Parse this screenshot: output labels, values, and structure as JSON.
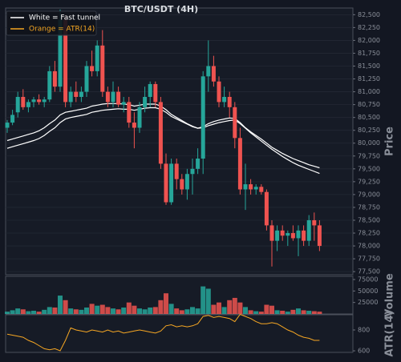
{
  "chart_data": [
    {
      "type": "candlestick",
      "title": "BTC/USDT (4H)",
      "ylabel": "Price",
      "grid": true,
      "up_color": "#26a69a",
      "down_color": "#ef5350",
      "open": [
        80300,
        80400,
        80600,
        80900,
        80700,
        80800,
        80850,
        80800,
        80850,
        81400,
        81100,
        82400,
        80800,
        81000,
        80900,
        81000,
        81500,
        81400,
        81900,
        81000,
        80800,
        81000,
        80750,
        80800,
        80400,
        80300,
        80700,
        80900,
        81150,
        80800,
        79600,
        78850,
        79600,
        79300,
        79100,
        79400,
        79500,
        79700,
        81300,
        81500,
        81200,
        80800,
        80900,
        80700,
        80100,
        79100,
        79200,
        79100,
        79150,
        79050,
        78400,
        78100,
        78300,
        78200,
        78250,
        78150,
        78300,
        78100,
        78500,
        78400
      ],
      "high": [
        80450,
        80650,
        81000,
        81050,
        80850,
        80900,
        80950,
        80900,
        81500,
        81600,
        82600,
        82500,
        81100,
        81200,
        81100,
        81600,
        81800,
        82000,
        82200,
        81100,
        81200,
        81100,
        80900,
        80900,
        80600,
        80800,
        81100,
        81200,
        81200,
        80900,
        79800,
        79700,
        79700,
        79400,
        79500,
        79700,
        79900,
        81400,
        82000,
        81700,
        81300,
        81100,
        81000,
        80800,
        80300,
        79600,
        79300,
        79200,
        79200,
        79100,
        78500,
        78400,
        78400,
        78300,
        78400,
        78400,
        78400,
        78600,
        78650,
        78500
      ],
      "low": [
        80200,
        80350,
        80500,
        80650,
        80600,
        80700,
        80750,
        80700,
        80800,
        81000,
        81000,
        80700,
        80700,
        80800,
        80800,
        80900,
        81300,
        81300,
        80900,
        80700,
        80700,
        80700,
        80600,
        80300,
        79900,
        80200,
        80600,
        80700,
        80700,
        79500,
        78800,
        78800,
        79100,
        79000,
        78900,
        79000,
        79400,
        79400,
        81000,
        81100,
        80700,
        80700,
        80500,
        79900,
        79000,
        78700,
        79000,
        79000,
        79000,
        78300,
        77600,
        77900,
        78100,
        78000,
        78100,
        77800,
        78000,
        78000,
        78100,
        77900
      ],
      "close": [
        80400,
        80550,
        80900,
        80700,
        80800,
        80850,
        80800,
        80850,
        81400,
        81100,
        82400,
        80800,
        81000,
        80900,
        81000,
        81500,
        81400,
        81900,
        81000,
        80800,
        81000,
        80750,
        80800,
        80400,
        80300,
        80700,
        80900,
        81150,
        80800,
        79600,
        78850,
        79600,
        79300,
        79100,
        79400,
        79500,
        79700,
        81300,
        81500,
        81200,
        80800,
        80900,
        80700,
        80100,
        79100,
        79200,
        79100,
        79150,
        79050,
        78400,
        78100,
        78300,
        78200,
        78250,
        78150,
        78300,
        78100,
        78500,
        78400,
        78000
      ],
      "tunnel": {
        "color": "#ffffff",
        "upper": [
          80050,
          80080,
          80110,
          80140,
          80170,
          80200,
          80240,
          80300,
          80380,
          80450,
          80550,
          80600,
          80620,
          80640,
          80660,
          80680,
          80720,
          80740,
          80760,
          80770,
          80770,
          80770,
          80760,
          80750,
          80720,
          80740,
          80760,
          80760,
          80760,
          80720,
          80650,
          80560,
          80500,
          80440,
          80380,
          80330,
          80290,
          80320,
          80380,
          80420,
          80450,
          80470,
          80490,
          80480,
          80400,
          80300,
          80220,
          80150,
          80080,
          80000,
          79920,
          79860,
          79800,
          79750,
          79700,
          79660,
          79620,
          79580,
          79550,
          79520
        ],
        "lower": [
          79900,
          79930,
          79960,
          79990,
          80020,
          80050,
          80090,
          80150,
          80230,
          80300,
          80400,
          80470,
          80500,
          80520,
          80540,
          80560,
          80600,
          80620,
          80640,
          80650,
          80660,
          80670,
          80660,
          80660,
          80640,
          80660,
          80680,
          80690,
          80690,
          80660,
          80600,
          80520,
          80470,
          80420,
          80370,
          80320,
          80290,
          80300,
          80340,
          80370,
          80400,
          80420,
          80440,
          80450,
          80380,
          80290,
          80200,
          80120,
          80040,
          79960,
          79880,
          79810,
          79740,
          79680,
          79620,
          79570,
          79530,
          79490,
          79450,
          79410
        ]
      },
      "legend": [
        {
          "label": "White = Fast tunnel",
          "color": "#ffffff"
        },
        {
          "label": "Orange = ATR(14)",
          "color": "#f5a623"
        }
      ],
      "ylim": [
        77440,
        82630
      ],
      "yticks": [
        {
          "value": 77500,
          "label": "77,500"
        },
        {
          "value": 77750,
          "label": "77,750"
        },
        {
          "value": 78000,
          "label": "78,000"
        },
        {
          "value": 78250,
          "label": "78,250"
        },
        {
          "value": 78500,
          "label": "78,500"
        },
        {
          "value": 78750,
          "label": "78,750"
        },
        {
          "value": 79000,
          "label": "79,000"
        },
        {
          "value": 79250,
          "label": "79,250"
        },
        {
          "value": 79500,
          "label": "79,500"
        },
        {
          "value": 79750,
          "label": "79,750"
        },
        {
          "value": 80000,
          "label": "80,000"
        },
        {
          "value": 80250,
          "label": "80,250"
        },
        {
          "value": 80500,
          "label": "80,500"
        },
        {
          "value": 80750,
          "label": "80,750"
        },
        {
          "value": 81000,
          "label": "81,000"
        },
        {
          "value": 81250,
          "label": "81,250"
        },
        {
          "value": 81500,
          "label": "81,500"
        },
        {
          "value": 81750,
          "label": "81,750"
        },
        {
          "value": 82000,
          "label": "82,000"
        },
        {
          "value": 82250,
          "label": "82,250"
        },
        {
          "value": 82500,
          "label": "82,500"
        }
      ]
    },
    {
      "type": "bar",
      "ylabel": "Volume",
      "values": [
        5000,
        8000,
        12000,
        10000,
        6000,
        7000,
        5000,
        9000,
        15000,
        14000,
        40000,
        30000,
        12000,
        10000,
        9000,
        14000,
        22000,
        18000,
        20000,
        15000,
        12000,
        10000,
        14000,
        25000,
        18000,
        12000,
        10000,
        14000,
        15000,
        30000,
        45000,
        22000,
        12000,
        8000,
        10000,
        15000,
        12000,
        60000,
        55000,
        20000,
        25000,
        15000,
        30000,
        35000,
        25000,
        15000,
        8000,
        6000,
        5000,
        20000,
        18000,
        8000,
        7000,
        5000,
        9000,
        12000,
        8000,
        7000,
        6000,
        5000
      ],
      "ylim": [
        0,
        82000
      ],
      "yticks": [
        25000,
        50000,
        75000
      ]
    },
    {
      "type": "line",
      "ylabel": "ATR(14)",
      "color": "#f5a623",
      "values": [
        760,
        750,
        740,
        730,
        700,
        680,
        650,
        620,
        610,
        620,
        600,
        700,
        820,
        800,
        790,
        780,
        800,
        790,
        780,
        800,
        780,
        790,
        770,
        780,
        790,
        800,
        790,
        780,
        770,
        790,
        840,
        850,
        830,
        840,
        830,
        840,
        860,
        930,
        940,
        920,
        930,
        920,
        910,
        880,
        950,
        930,
        910,
        880,
        860,
        860,
        870,
        860,
        830,
        800,
        780,
        750,
        730,
        720,
        700,
        700
      ],
      "ylim": [
        585,
        946
      ],
      "yticks": [
        600,
        800
      ]
    }
  ]
}
